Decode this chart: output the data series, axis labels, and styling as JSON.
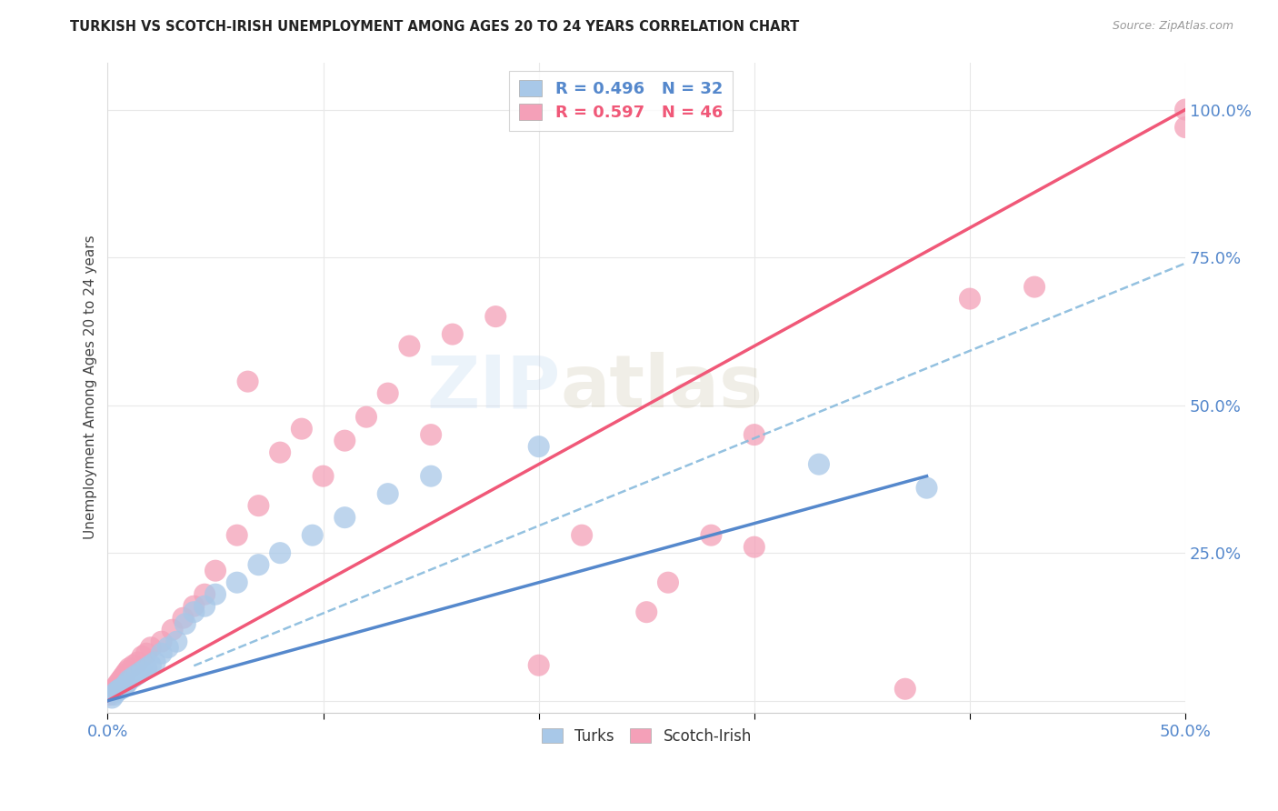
{
  "title": "TURKISH VS SCOTCH-IRISH UNEMPLOYMENT AMONG AGES 20 TO 24 YEARS CORRELATION CHART",
  "source": "Source: ZipAtlas.com",
  "ylabel": "Unemployment Among Ages 20 to 24 years",
  "xlim": [
    0.0,
    0.5
  ],
  "ylim": [
    -0.02,
    1.08
  ],
  "xtick_positions": [
    0.0,
    0.1,
    0.2,
    0.3,
    0.4,
    0.5
  ],
  "xticklabels": [
    "0.0%",
    "",
    "",
    "",
    "",
    "50.0%"
  ],
  "ytick_positions": [
    0.0,
    0.25,
    0.5,
    0.75,
    1.0
  ],
  "yticklabels": [
    "",
    "25.0%",
    "50.0%",
    "75.0%",
    "100.0%"
  ],
  "turks_color": "#a8c8e8",
  "scotch_color": "#f4a0b8",
  "turks_line_color": "#5588cc",
  "scotch_line_color": "#f05878",
  "turks_dash_color": "#88bbdd",
  "legend_turks_R": "0.496",
  "legend_turks_N": "32",
  "legend_scotch_R": "0.597",
  "legend_scotch_N": "46",
  "watermark_zip": "ZIP",
  "watermark_atlas": "atlas",
  "grid_color": "#e8e8e8",
  "background_color": "#ffffff",
  "turks_x": [
    0.002,
    0.003,
    0.004,
    0.005,
    0.006,
    0.007,
    0.008,
    0.009,
    0.01,
    0.012,
    0.014,
    0.016,
    0.018,
    0.02,
    0.022,
    0.025,
    0.028,
    0.032,
    0.036,
    0.04,
    0.045,
    0.05,
    0.06,
    0.07,
    0.08,
    0.095,
    0.11,
    0.13,
    0.15,
    0.2,
    0.33,
    0.38
  ],
  "turks_y": [
    0.005,
    0.01,
    0.015,
    0.018,
    0.02,
    0.022,
    0.025,
    0.03,
    0.035,
    0.04,
    0.045,
    0.05,
    0.055,
    0.06,
    0.065,
    0.08,
    0.09,
    0.1,
    0.13,
    0.15,
    0.16,
    0.18,
    0.2,
    0.23,
    0.25,
    0.28,
    0.31,
    0.35,
    0.38,
    0.43,
    0.4,
    0.36
  ],
  "scotch_x": [
    0.001,
    0.002,
    0.003,
    0.004,
    0.005,
    0.006,
    0.007,
    0.008,
    0.009,
    0.01,
    0.012,
    0.014,
    0.016,
    0.018,
    0.02,
    0.025,
    0.03,
    0.035,
    0.04,
    0.045,
    0.05,
    0.06,
    0.065,
    0.07,
    0.08,
    0.09,
    0.1,
    0.11,
    0.12,
    0.13,
    0.14,
    0.15,
    0.16,
    0.18,
    0.2,
    0.22,
    0.25,
    0.26,
    0.28,
    0.3,
    0.3,
    0.37,
    0.4,
    0.43,
    0.5,
    0.5
  ],
  "scotch_y": [
    0.01,
    0.015,
    0.02,
    0.025,
    0.03,
    0.035,
    0.04,
    0.045,
    0.05,
    0.055,
    0.06,
    0.065,
    0.075,
    0.08,
    0.09,
    0.1,
    0.12,
    0.14,
    0.16,
    0.18,
    0.22,
    0.28,
    0.54,
    0.33,
    0.42,
    0.46,
    0.38,
    0.44,
    0.48,
    0.52,
    0.6,
    0.45,
    0.62,
    0.65,
    0.06,
    0.28,
    0.15,
    0.2,
    0.28,
    0.45,
    0.26,
    0.02,
    0.68,
    0.7,
    0.97,
    1.0
  ],
  "turks_line_x": [
    0.0,
    0.38
  ],
  "turks_line_y": [
    0.0,
    0.38
  ],
  "scotch_line_x": [
    0.0,
    0.5
  ],
  "scotch_line_y": [
    0.0,
    1.0
  ]
}
